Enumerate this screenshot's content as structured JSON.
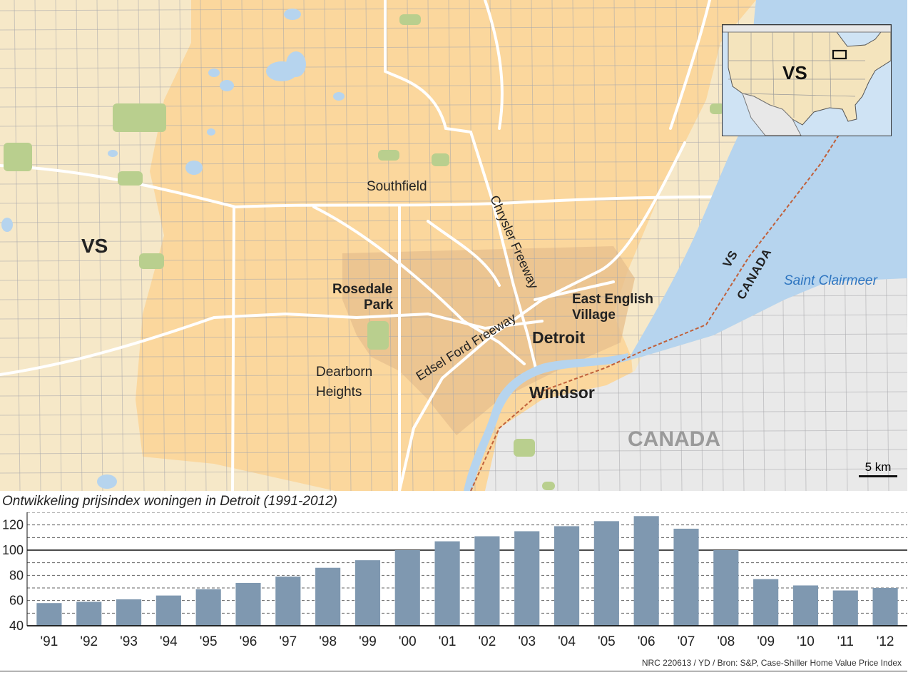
{
  "map": {
    "labels": {
      "southfield": "Southfield",
      "vs_main": "VS",
      "rosedale_1": "Rosedale",
      "rosedale_2": "Park",
      "east_english_1": "East English",
      "east_english_2": "Village",
      "detroit": "Detroit",
      "dearborn_1": "Dearborn",
      "dearborn_2": "Heights",
      "windsor": "Windsor",
      "canada": "CANADA",
      "chrysler": "Chrysler Freeway",
      "edsel": "Edsel Ford Freeway",
      "border_vs": "VS",
      "border_canada": "CANADA",
      "lake": "Saint Clairmeer"
    },
    "inset": {
      "label": "VS"
    },
    "scale": {
      "label": "5 km"
    },
    "colors": {
      "urban": "#fbd79d",
      "rural": "#f6e8c8",
      "canada_land": "#e9e9e9",
      "water": "#b6d4ee",
      "park": "#b9cf8e",
      "core": "#e8c18e",
      "road": "#a8a8ac",
      "highway": "#ffffff",
      "border": "#c0603a"
    }
  },
  "chart_data": {
    "type": "bar",
    "title": "Ontwikkeling prijsindex woningen in Detroit (1991-2012)",
    "categories": [
      "'91",
      "'92",
      "'93",
      "'94",
      "'95",
      "'96",
      "'97",
      "'98",
      "'99",
      "'00",
      "'01",
      "'02",
      "'03",
      "'04",
      "'05",
      "'06",
      "'07",
      "'08",
      "'09",
      "'10",
      "'11",
      "'12"
    ],
    "values": [
      58,
      59,
      61,
      64,
      69,
      74,
      79,
      86,
      92,
      100,
      107,
      111,
      115,
      119,
      123,
      127,
      117,
      100,
      77,
      72,
      68,
      70
    ],
    "yticks": [
      40,
      60,
      80,
      100,
      120
    ],
    "ylim": [
      40,
      130
    ],
    "reference_line": 100,
    "bar_color": "#7f98b0",
    "xlabel": "",
    "ylabel": ""
  },
  "source": "NRC 220613 / YD / Bron: S&P, Case-Shiller Home Value Price Index"
}
